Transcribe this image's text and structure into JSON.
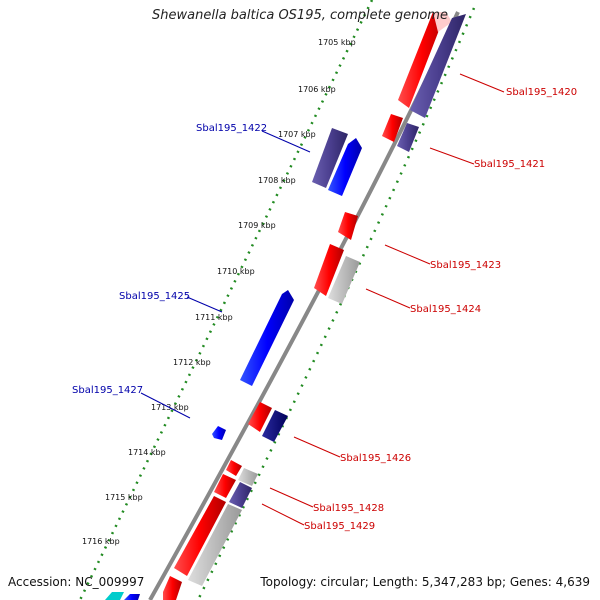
{
  "title": "Shewanella baltica OS195, complete genome",
  "accession": "Accession: NC_009997",
  "topology": "Topology: circular; Length: 5,347,283 bp; Genes: 4,639",
  "colors": {
    "backbone": "#888888",
    "tick": "#228b22",
    "forward_cds": "#ff0000",
    "reverse_cds": "#0000ff",
    "purple_cds": "#4b3f8f",
    "navy_cds": "#000080",
    "gray_cds": "#bbbbbb",
    "cyan_cds": "#00cccc",
    "label_red": "#cc0000",
    "label_blue": "#0000aa"
  },
  "ticks": [
    {
      "label": "1705 kbp"
    },
    {
      "label": "1706 kbp"
    },
    {
      "label": "1707 kbp"
    },
    {
      "label": "1708 kbp"
    },
    {
      "label": "1709 kbp"
    },
    {
      "label": "1710 kbp"
    },
    {
      "label": "1711 kbp"
    },
    {
      "label": "1712 kbp"
    },
    {
      "label": "1713 kbp"
    },
    {
      "label": "1714 kbp"
    },
    {
      "label": "1715 kbp"
    },
    {
      "label": "1716 kbp"
    }
  ],
  "gene_labels": {
    "g1420": "Sbal195_1420",
    "g1421": "Sbal195_1421",
    "g1422": "Sbal195_1422",
    "g1423": "Sbal195_1423",
    "g1424": "Sbal195_1424",
    "g1425": "Sbal195_1425",
    "g1426": "Sbal195_1426",
    "g1427": "Sbal195_1427",
    "g1428": "Sbal195_1428",
    "g1429": "Sbal195_1429"
  }
}
